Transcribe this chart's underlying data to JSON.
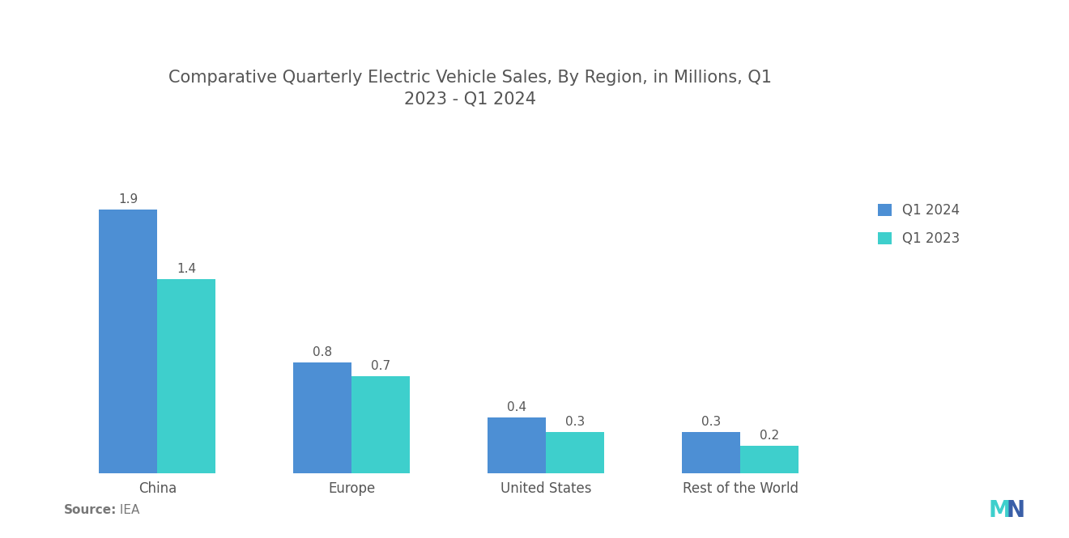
{
  "title": "Comparative Quarterly Electric Vehicle Sales, By Region, in Millions, Q1\n2023 - Q1 2024",
  "categories": [
    "China",
    "Europe",
    "United States",
    "Rest of the World"
  ],
  "q1_2024": [
    1.9,
    0.8,
    0.4,
    0.3
  ],
  "q1_2023": [
    1.4,
    0.7,
    0.3,
    0.2
  ],
  "color_2024": "#4d8fd4",
  "color_2023": "#3ecfcc",
  "legend_labels": [
    "Q1 2024",
    "Q1 2023"
  ],
  "source_label": "Source:",
  "source_value": " IEA",
  "background_color": "#ffffff",
  "bar_width": 0.3,
  "title_fontsize": 15,
  "label_fontsize": 12,
  "tick_fontsize": 12,
  "value_fontsize": 11,
  "source_fontsize": 11,
  "ylim": [
    0,
    2.4
  ]
}
